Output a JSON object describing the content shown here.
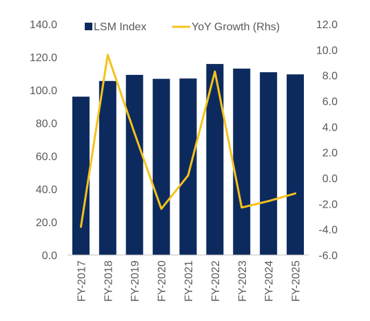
{
  "chart_data": {
    "type": "bar",
    "categories": [
      "FY-2017",
      "FY-2018",
      "FY-2019",
      "FY-2020",
      "FY-2021",
      "FY-2022",
      "FY-2023",
      "FY-2024",
      "FY-2025"
    ],
    "series": [
      {
        "name": "LSM Index",
        "type": "bar",
        "axis": "left",
        "color": "#0d2a5e",
        "values": [
          96.0,
          105.5,
          109.2,
          106.8,
          107.0,
          115.8,
          113.0,
          110.8,
          109.5
        ]
      },
      {
        "name": "YoY Growth (Rhs)",
        "type": "line",
        "axis": "right",
        "color": "#f5c21b",
        "values": [
          -3.8,
          9.6,
          3.5,
          -2.4,
          0.2,
          8.3,
          -2.3,
          -1.8,
          -1.2
        ]
      }
    ],
    "y_left": {
      "ylim": [
        0,
        140
      ],
      "ticks": [
        "0.0",
        "20.0",
        "40.0",
        "60.0",
        "80.0",
        "100.0",
        "120.0",
        "140.0"
      ]
    },
    "y_right": {
      "ylim": [
        -6,
        12
      ],
      "ticks": [
        "-6.0",
        "-4.0",
        "-2.0",
        "0.0",
        "2.0",
        "4.0",
        "6.0",
        "8.0",
        "10.0",
        "12.0"
      ]
    },
    "grid": false,
    "legend": "top"
  }
}
